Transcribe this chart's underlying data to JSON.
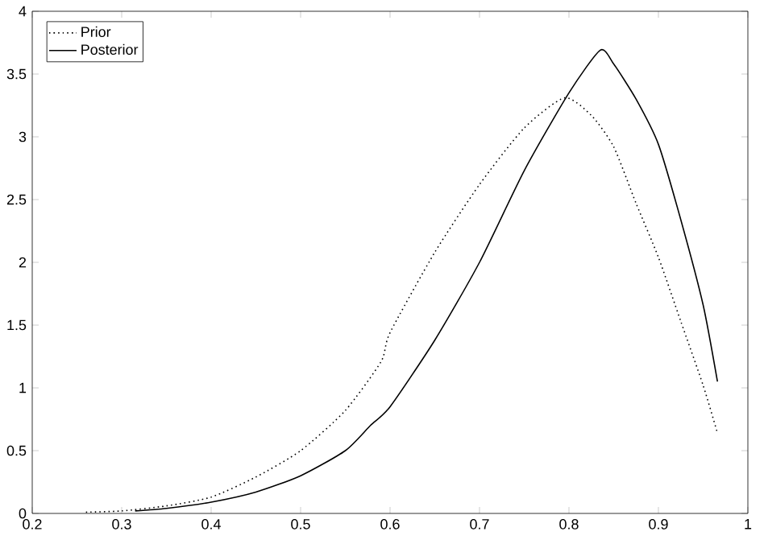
{
  "chart_data": {
    "type": "line",
    "xlim": [
      0.2,
      1
    ],
    "ylim": [
      0,
      4
    ],
    "xticks": [
      0.2,
      0.3,
      0.4,
      0.5,
      0.6,
      0.7,
      0.8,
      0.9,
      1
    ],
    "yticks": [
      0,
      0.5,
      1,
      1.5,
      2,
      2.5,
      3,
      3.5,
      4
    ],
    "legend": "top left",
    "grid": false,
    "marker": "none",
    "series": [
      {
        "name": "Prior",
        "color": "#000000",
        "line_style": "dotted",
        "x": [
          0.26,
          0.3,
          0.35,
          0.4,
          0.45,
          0.5,
          0.55,
          0.59,
          0.6,
          0.65,
          0.7,
          0.75,
          0.795,
          0.825,
          0.85,
          0.875,
          0.9,
          0.925,
          0.95,
          0.966
        ],
        "values": [
          0.01,
          0.02,
          0.06,
          0.13,
          0.29,
          0.5,
          0.82,
          1.21,
          1.44,
          2.08,
          2.62,
          3.07,
          3.31,
          3.17,
          2.92,
          2.47,
          2.04,
          1.53,
          1.02,
          0.64
        ]
      },
      {
        "name": "Posterior",
        "color": "#000000",
        "line_style": "solid",
        "x": [
          0.315,
          0.35,
          0.4,
          0.45,
          0.5,
          0.55,
          0.578,
          0.6,
          0.65,
          0.7,
          0.75,
          0.8,
          0.835,
          0.85,
          0.875,
          0.9,
          0.925,
          0.95,
          0.966
        ],
        "values": [
          0.02,
          0.04,
          0.09,
          0.17,
          0.3,
          0.5,
          0.7,
          0.85,
          1.38,
          2.0,
          2.73,
          3.35,
          3.69,
          3.58,
          3.3,
          2.94,
          2.34,
          1.66,
          1.05
        ]
      }
    ]
  }
}
